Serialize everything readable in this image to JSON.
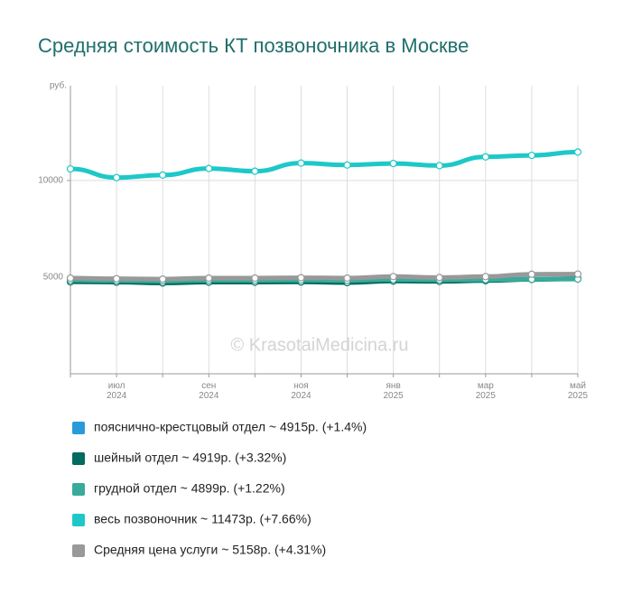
{
  "chart_data": {
    "type": "line",
    "title": "Средняя стоимость КТ позвоночника в Москве",
    "y_label": "руб.",
    "watermark": "© KrasotaiMedicina.ru",
    "categories": [
      null,
      "июл 2024",
      null,
      "сен 2024",
      null,
      "ноя 2024",
      null,
      "янв 2025",
      null,
      "мар 2025",
      null,
      "май 2025"
    ],
    "ylim": [
      0,
      14900
    ],
    "yticks": [
      5000,
      10000
    ],
    "grid": true,
    "series": [
      {
        "name": "пояснично-крестцовый отдел ~ 4915р. (+1.4%)",
        "color": "#2b9adb",
        "values": [
          4800,
          4780,
          4760,
          4800,
          4800,
          4810,
          4780,
          4870,
          4840,
          4860,
          4900,
          4915
        ]
      },
      {
        "name": "шейный отдел ~ 4919р. (+3.32%)",
        "color": "#006b5f",
        "values": [
          4760,
          4740,
          4700,
          4740,
          4740,
          4750,
          4720,
          4800,
          4780,
          4820,
          4880,
          4919
        ]
      },
      {
        "name": "грудной отдел ~ 4899р. (+1.22%)",
        "color": "#3aaa9a",
        "values": [
          4850,
          4820,
          4800,
          4840,
          4840,
          4850,
          4830,
          4880,
          4860,
          4870,
          4890,
          4899
        ]
      },
      {
        "name": "весь позвоночник ~ 11473р. (+7.66%)",
        "color": "#1ec8c8",
        "values": [
          10600,
          10150,
          10280,
          10620,
          10480,
          10900,
          10800,
          10880,
          10770,
          11220,
          11300,
          11473
        ]
      },
      {
        "name": "Средняя цена услуги ~ 5158р. (+4.31%)",
        "color": "#999999",
        "values": [
          4950,
          4920,
          4900,
          4950,
          4950,
          4970,
          4950,
          5030,
          4980,
          5030,
          5150,
          5158
        ]
      }
    ]
  }
}
